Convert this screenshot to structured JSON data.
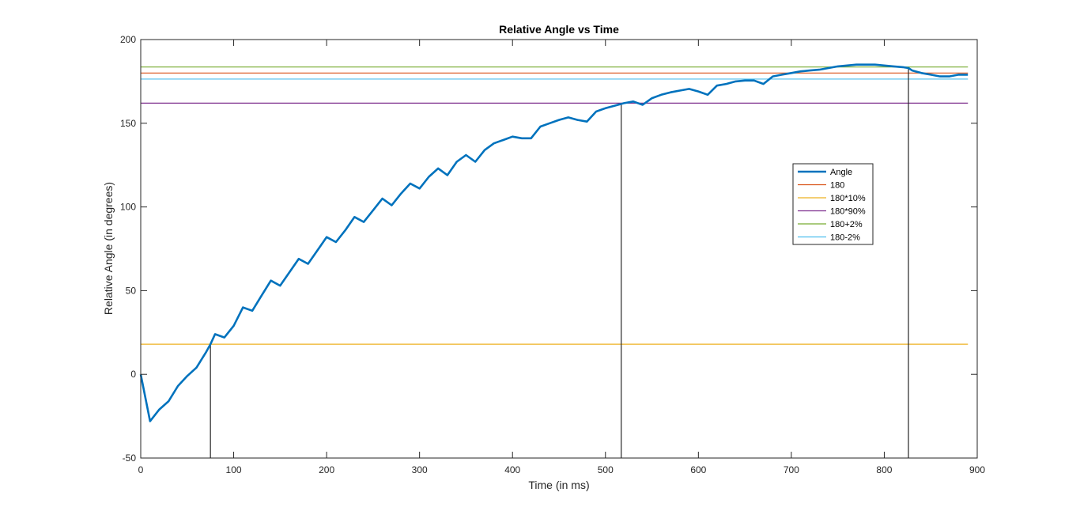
{
  "chart_data": {
    "type": "line",
    "title": "Relative Angle vs Time",
    "xlabel": "Time (in ms)",
    "ylabel": "Relative Angle (in degrees)",
    "xlim": [
      0,
      900
    ],
    "ylim": [
      -50,
      200
    ],
    "xticks": [
      0,
      100,
      200,
      300,
      400,
      500,
      600,
      700,
      800,
      900
    ],
    "yticks": [
      -50,
      0,
      50,
      100,
      150,
      200
    ],
    "grid": false,
    "legend_position": "right",
    "series": [
      {
        "name": "Angle",
        "color": "#0072BD",
        "line_weight": "thick",
        "x": [
          0,
          10,
          20,
          30,
          40,
          50,
          60,
          70,
          75,
          80,
          90,
          100,
          110,
          120,
          130,
          140,
          150,
          160,
          170,
          180,
          190,
          200,
          210,
          220,
          230,
          240,
          250,
          260,
          270,
          280,
          290,
          300,
          310,
          320,
          330,
          340,
          350,
          360,
          370,
          380,
          390,
          400,
          410,
          420,
          430,
          440,
          450,
          460,
          470,
          480,
          490,
          500,
          510,
          520,
          530,
          540,
          550,
          560,
          570,
          580,
          590,
          600,
          610,
          620,
          630,
          640,
          650,
          660,
          670,
          680,
          690,
          700,
          710,
          720,
          730,
          740,
          750,
          760,
          770,
          780,
          790,
          800,
          810,
          820,
          826,
          830,
          840,
          850,
          860,
          870,
          880,
          890
        ],
        "y": [
          0,
          -28,
          -21,
          -16,
          -7,
          -1,
          4,
          13,
          18,
          24,
          22,
          29,
          40,
          38,
          47,
          56,
          53,
          61,
          69,
          66,
          74,
          82,
          79,
          86,
          94,
          91,
          98,
          105,
          101,
          108,
          114,
          111,
          118,
          123,
          119,
          127,
          131,
          127,
          134,
          138,
          140,
          142,
          141,
          141,
          148,
          150,
          152,
          153.5,
          152,
          151,
          157,
          159,
          160.5,
          162,
          163,
          161,
          165,
          167,
          168.5,
          169.5,
          170.5,
          169,
          167,
          172.5,
          173.5,
          175,
          175.5,
          175.5,
          173.5,
          178,
          179,
          180,
          181,
          181.5,
          182,
          183,
          184,
          184.5,
          185,
          185,
          185,
          184.5,
          184,
          183.5,
          183,
          181.5,
          180,
          179,
          178,
          178,
          179,
          179
        ]
      },
      {
        "name": "180",
        "color": "#D95319",
        "constant": 180
      },
      {
        "name": "180*10%",
        "color": "#EDB120",
        "constant": 18
      },
      {
        "name": "180*90%",
        "color": "#7E2F8E",
        "constant": 162
      },
      {
        "name": "180+2%",
        "color": "#77AC30",
        "constant": 183.6
      },
      {
        "name": "180-2%",
        "color": "#4DBEEE",
        "constant": 176.4
      }
    ],
    "annotations": [
      {
        "type": "vertical-line",
        "x": 75,
        "y_from": -50,
        "y_to": 18,
        "color": "#262626"
      },
      {
        "type": "vertical-line",
        "x": 517,
        "y_from": -50,
        "y_to": 162,
        "color": "#262626"
      },
      {
        "type": "vertical-line",
        "x": 826,
        "y_from": -50,
        "y_to": 183.6,
        "color": "#262626"
      }
    ]
  }
}
